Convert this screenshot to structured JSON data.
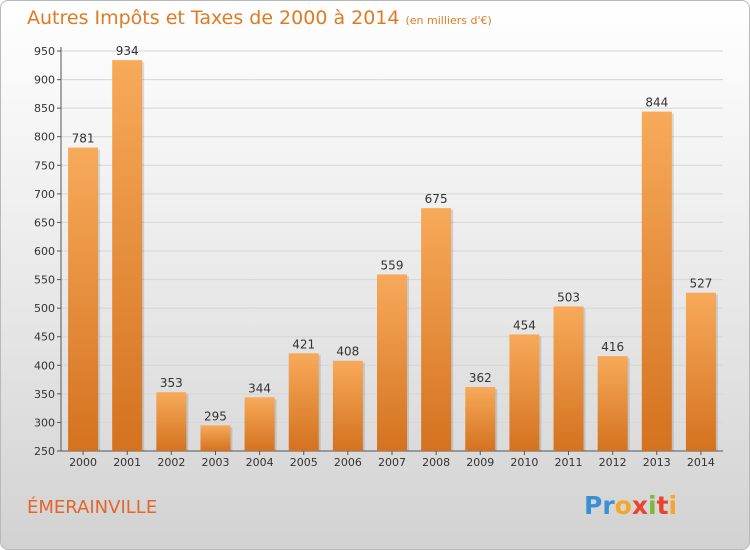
{
  "chart_data": {
    "type": "bar",
    "title": "Autres Impôts et Taxes de 2000 à 2014",
    "unit": "(en milliers d'€)",
    "xlabel": "",
    "ylabel": "",
    "categories": [
      "2000",
      "2001",
      "2002",
      "2003",
      "2004",
      "2005",
      "2006",
      "2007",
      "2008",
      "2009",
      "2010",
      "2011",
      "2012",
      "2013",
      "2014"
    ],
    "values": [
      781,
      934,
      353,
      295,
      344,
      421,
      408,
      559,
      675,
      362,
      454,
      503,
      416,
      844,
      527
    ],
    "ylim": [
      250,
      950
    ],
    "yticks": [
      250,
      300,
      350,
      400,
      450,
      500,
      550,
      600,
      650,
      700,
      750,
      800,
      850,
      900,
      950
    ],
    "grid": true,
    "bar_color": "#f19a45"
  },
  "footer": {
    "commune": "ÉMERAINVILLE"
  },
  "brand": {
    "letters": [
      "P",
      "r",
      "o",
      "x",
      "i",
      "t",
      "i"
    ],
    "colors": [
      "#3a8fd6",
      "#3a8fd6",
      "#f2a62b",
      "#e8452c",
      "#7ab83f",
      "#e8452c",
      "#f2a62b"
    ]
  }
}
